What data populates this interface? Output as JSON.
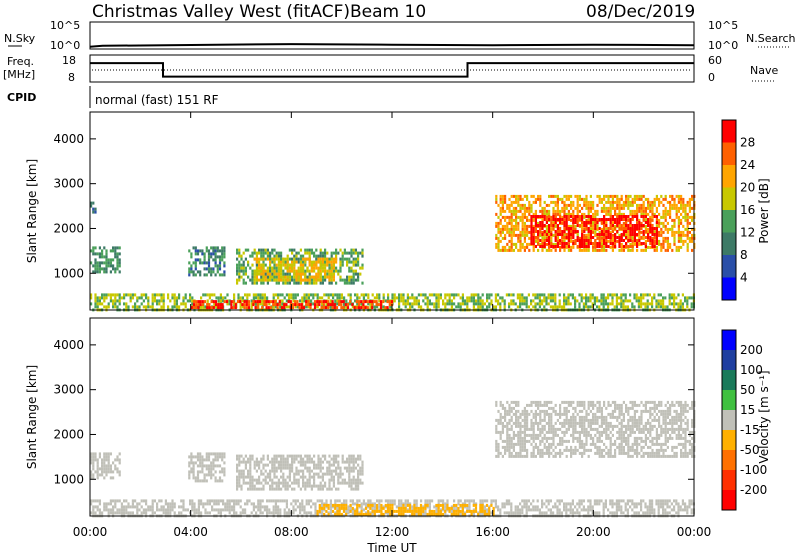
{
  "header": {
    "station": "Christmas Valley West (fitACF)",
    "beam": "Beam 10",
    "date": "08/Dec/2019"
  },
  "strip_labels": {
    "nsky": "N.Sky",
    "nsearch": "N.Search",
    "freq": "Freq.",
    "freq_unit": "[MHz]",
    "nave": "Nave",
    "cpid": "CPID",
    "cpid_value": "normal (fast) 151 RF"
  },
  "noise_ticks": [
    "10^5",
    "10^0"
  ],
  "freq_ticks": [
    "18",
    "8"
  ],
  "nave_ticks": [
    "60",
    "0"
  ],
  "time_ticks": [
    "00:00",
    "04:00",
    "08:00",
    "12:00",
    "16:00",
    "20:00",
    "00:00"
  ],
  "xlabel": "Time UT",
  "range_ticks": [
    "4000",
    "3000",
    "2000",
    "1000"
  ],
  "ylabel": "Slant Range [km]",
  "power_scale": {
    "label": "Power [dB]",
    "ticks": [
      "28",
      "24",
      "20",
      "16",
      "12",
      "8",
      "4"
    ],
    "colors": [
      "#0000ff",
      "#2a4fa8",
      "#3d7a66",
      "#4aa05a",
      "#c8c800",
      "#ffa500",
      "#ff6000",
      "#ff0000"
    ]
  },
  "velocity_scale": {
    "label": "Velocity [m s⁻¹]",
    "ticks": [
      "200",
      "100",
      "50",
      "15",
      "-15",
      "-50",
      "-100",
      "-200"
    ],
    "colors": [
      "#0000ff",
      "#1f3fa0",
      "#1a7a5a",
      "#40c040",
      "#c0c0b8",
      "#ffb000",
      "#ff7000",
      "#ff3000",
      "#ff0000"
    ]
  },
  "chart_data": [
    {
      "type": "line",
      "title": "N.Sky / N.Search",
      "x_range_hours": [
        0,
        24
      ],
      "ylim_log10": [
        0,
        5
      ],
      "series": [
        {
          "name": "N.Sky",
          "x": [
            0,
            0.5,
            3,
            8,
            12,
            16,
            20,
            24
          ],
          "values_log10": [
            0.4,
            0.6,
            0.7,
            0.9,
            0.8,
            0.7,
            0.8,
            0.7
          ]
        }
      ]
    },
    {
      "type": "line",
      "title": "Freq. / Nave",
      "x_range_hours": [
        0,
        24
      ],
      "ylim": [
        8,
        18
      ],
      "series": [
        {
          "name": "Freq.",
          "x": [
            0,
            2.9,
            2.9,
            15,
            15,
            24
          ],
          "values": [
            15,
            15,
            10,
            10,
            15,
            15
          ]
        }
      ]
    },
    {
      "type": "heatmap",
      "title": "Power [dB]",
      "xlabel": "Time UT",
      "ylabel": "Slant Range [km]",
      "x_range_hours": [
        0,
        24
      ],
      "ylim": [
        180,
        4600
      ],
      "colorbar_range": [
        0,
        32
      ],
      "regions": [
        {
          "t0": 0.0,
          "t1": 1.2,
          "r0": 1050,
          "r1": 1600,
          "value": 12
        },
        {
          "t0": 0.0,
          "t1": 0.2,
          "r0": 2350,
          "r1": 2600,
          "value": 10
        },
        {
          "t0": 3.9,
          "t1": 5.3,
          "r0": 950,
          "r1": 1600,
          "value": 11
        },
        {
          "t0": 5.8,
          "t1": 10.8,
          "r0": 800,
          "r1": 1550,
          "value": 14
        },
        {
          "t0": 6.5,
          "t1": 9.8,
          "r0": 850,
          "r1": 1350,
          "value": 20
        },
        {
          "t0": 0.0,
          "t1": 24.0,
          "r0": 200,
          "r1": 550,
          "value": 16
        },
        {
          "t0": 4.0,
          "t1": 12.0,
          "r0": 200,
          "r1": 400,
          "value": 28
        },
        {
          "t0": 16.1,
          "t1": 24.0,
          "r0": 1500,
          "r1": 2750,
          "value": 22
        },
        {
          "t0": 17.5,
          "t1": 22.5,
          "r0": 1600,
          "r1": 2300,
          "value": 30
        }
      ]
    },
    {
      "type": "heatmap",
      "title": "Velocity [m s⁻¹]",
      "xlabel": "Time UT",
      "ylabel": "Slant Range [km]",
      "x_range_hours": [
        0,
        24
      ],
      "ylim": [
        180,
        4600
      ],
      "colorbar_range": [
        -240,
        240
      ],
      "regions": [
        {
          "t0": 0.0,
          "t1": 1.2,
          "r0": 1050,
          "r1": 1600,
          "value": 0
        },
        {
          "t0": 3.9,
          "t1": 5.3,
          "r0": 950,
          "r1": 1600,
          "value": 0
        },
        {
          "t0": 5.8,
          "t1": 10.8,
          "r0": 800,
          "r1": 1550,
          "value": 0
        },
        {
          "t0": 0.0,
          "t1": 24.0,
          "r0": 200,
          "r1": 550,
          "value": 20
        },
        {
          "t0": 9.0,
          "t1": 16.0,
          "r0": 200,
          "r1": 450,
          "value": -45
        },
        {
          "t0": 16.1,
          "t1": 24.0,
          "r0": 1500,
          "r1": 2750,
          "value": 0
        }
      ]
    }
  ]
}
